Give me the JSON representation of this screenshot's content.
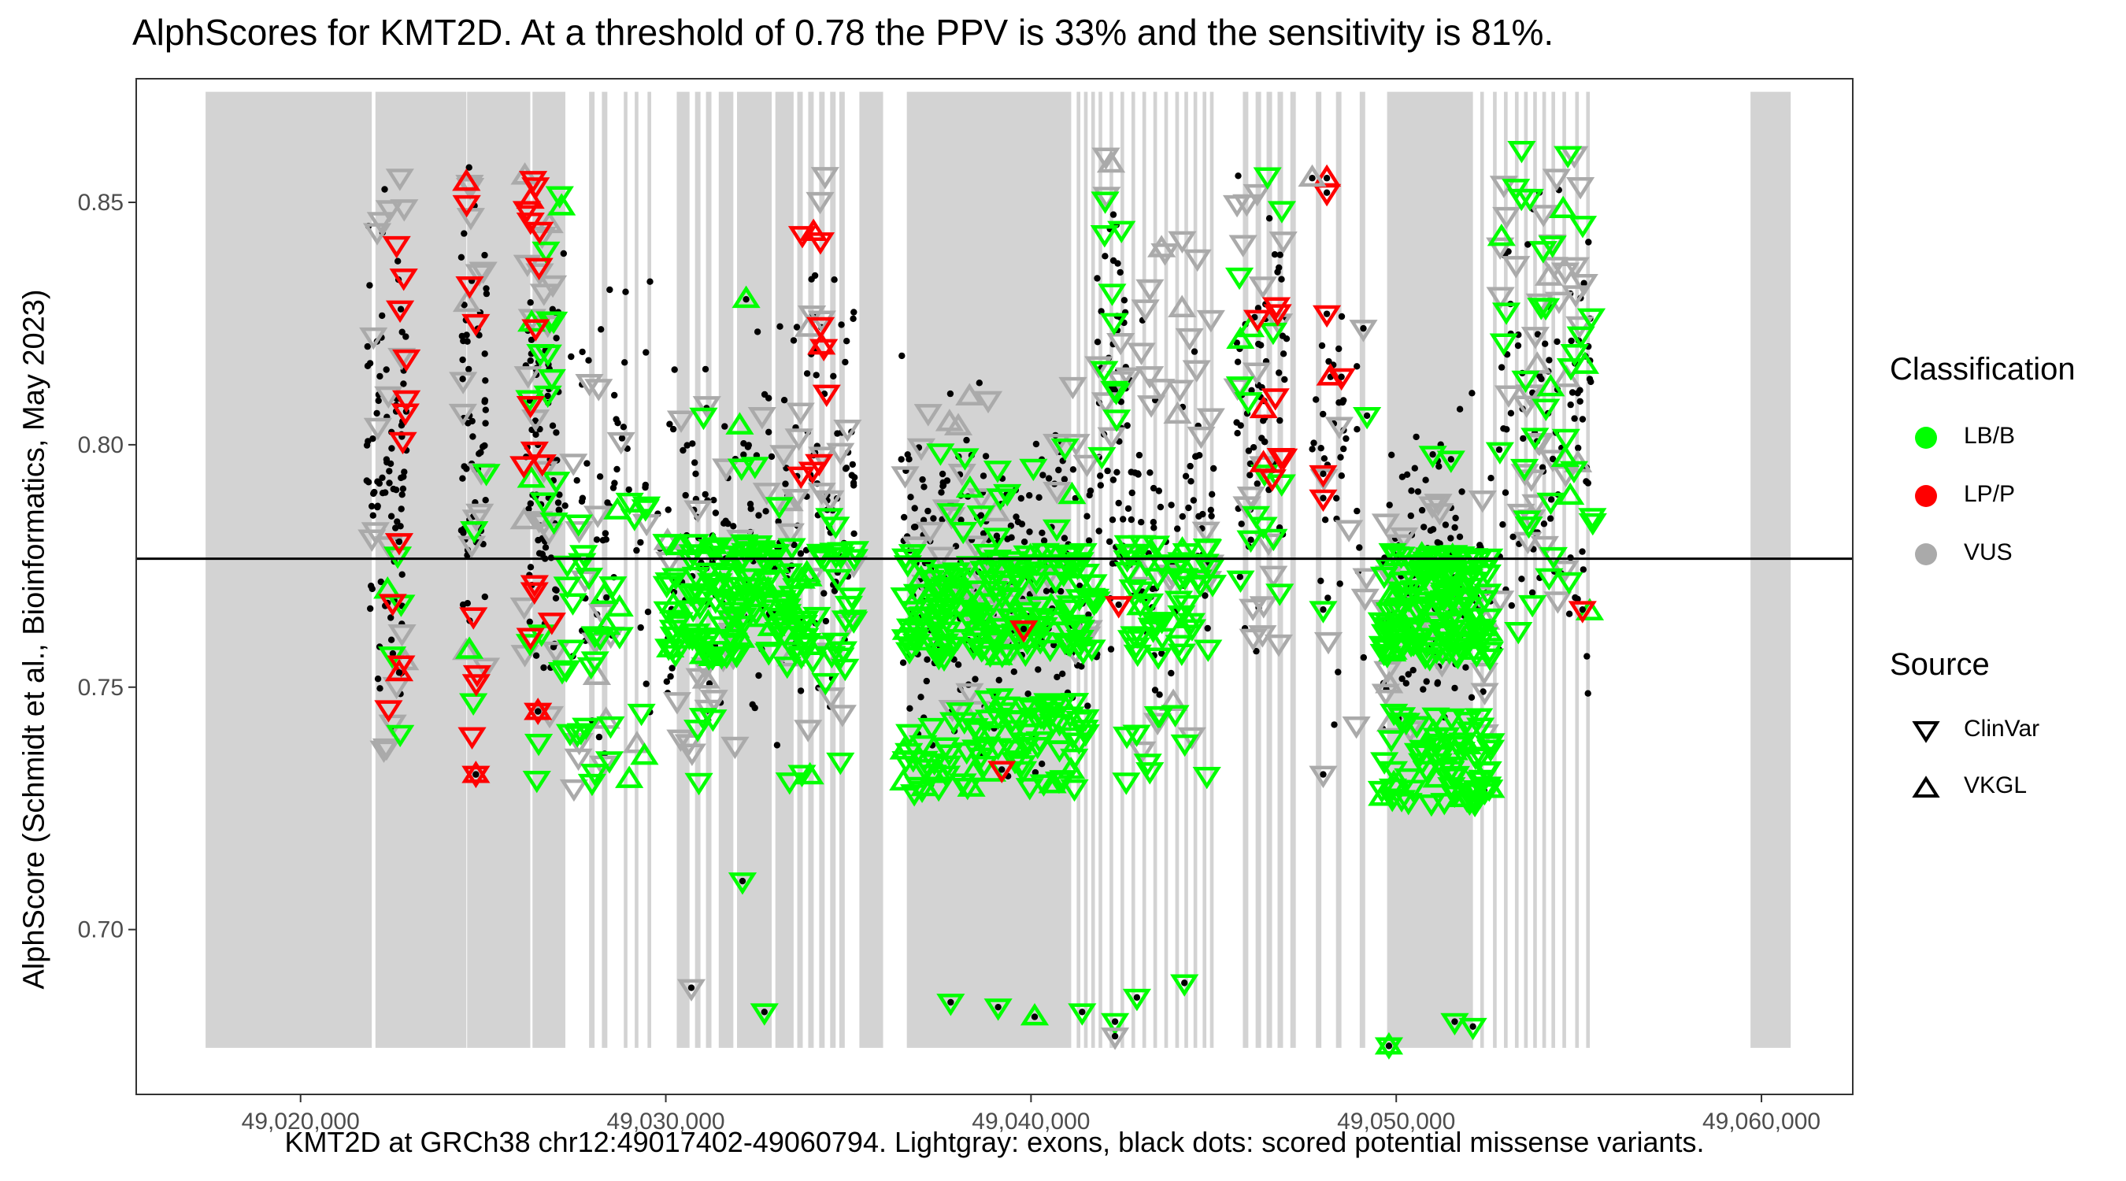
{
  "chart_data": {
    "type": "scatter",
    "title": "AlphScores for KMT2D. At a threshold of 0.78 the PPV is 33% and the sensitivity is 81%.",
    "xlabel": "KMT2D at GRCh38 chr12:49017402-49060794. Lightgray: exons, black dots: scored potential missense variants.",
    "ylabel": "AlphScore (Schmidt et al.,  Bioinformatics, May 2023)",
    "xlim": [
      49015500,
      49062500
    ],
    "ylim": [
      0.666,
      0.8755
    ],
    "x_ticks": [
      49020000,
      49030000,
      49040000,
      49050000,
      49060000
    ],
    "x_tick_labels": [
      "49,020,000",
      "49,030,000",
      "49,040,000",
      "49,050,000",
      "49,060,000"
    ],
    "y_ticks": [
      0.7,
      0.75,
      0.8,
      0.85
    ],
    "y_tick_labels": [
      "0.70",
      "0.75",
      "0.80",
      "0.85"
    ],
    "threshold": 0.7765,
    "grid": false,
    "exons": [
      [
        49017400,
        49021950
      ],
      [
        49022050,
        49024540
      ],
      [
        49024560,
        49026290
      ],
      [
        49026350,
        49027250
      ],
      [
        49027900,
        49028050
      ],
      [
        49028250,
        49028400
      ],
      [
        49028850,
        49028950
      ],
      [
        49029150,
        49029250
      ],
      [
        49029500,
        49029600
      ],
      [
        49030300,
        49030650
      ],
      [
        49030800,
        49030950
      ],
      [
        49031100,
        49031250
      ],
      [
        49031450,
        49031850
      ],
      [
        49031950,
        49032900
      ],
      [
        49033000,
        49033500
      ],
      [
        49033600,
        49033750
      ],
      [
        49033900,
        49034050
      ],
      [
        49034200,
        49034350
      ],
      [
        49034500,
        49034650
      ],
      [
        49034750,
        49034900
      ],
      [
        49035300,
        49035950
      ],
      [
        49036600,
        49041100
      ],
      [
        49041250,
        49041350
      ],
      [
        49041450,
        49041550
      ],
      [
        49041650,
        49041750
      ],
      [
        49041850,
        49041950
      ],
      [
        49042150,
        49042250
      ],
      [
        49042450,
        49042550
      ],
      [
        49042750,
        49042850
      ],
      [
        49043050,
        49043150
      ],
      [
        49043350,
        49043450
      ],
      [
        49043650,
        49043750
      ],
      [
        49043950,
        49044050
      ],
      [
        49044200,
        49044300
      ],
      [
        49044450,
        49044550
      ],
      [
        49044700,
        49044800
      ],
      [
        49044900,
        49045000
      ],
      [
        49045800,
        49045950
      ],
      [
        49046150,
        49046300
      ],
      [
        49046450,
        49046600
      ],
      [
        49046750,
        49046900
      ],
      [
        49047100,
        49047250
      ],
      [
        49047800,
        49047950
      ],
      [
        49048350,
        49048500
      ],
      [
        49049000,
        49049150
      ],
      [
        49049750,
        49052100
      ],
      [
        49052300,
        49052400
      ],
      [
        49052650,
        49052750
      ],
      [
        49052950,
        49053050
      ],
      [
        49053250,
        49053350
      ],
      [
        49053500,
        49053600
      ],
      [
        49053750,
        49053850
      ],
      [
        49054000,
        49054100
      ],
      [
        49054250,
        49054350
      ],
      [
        49054550,
        49054650
      ],
      [
        49054900,
        49055000
      ],
      [
        49055200,
        49055300
      ],
      [
        49059700,
        49060800
      ]
    ],
    "scored_regions": [
      [
        49021800,
        49022900,
        0.728,
        0.868,
        90
      ],
      [
        49024400,
        49025100,
        0.733,
        0.868,
        60
      ],
      [
        49026100,
        49027100,
        0.728,
        0.872,
        70
      ],
      [
        49027150,
        49029600,
        0.723,
        0.848,
        55
      ],
      [
        49029750,
        49031000,
        0.723,
        0.828,
        30
      ],
      [
        49031000,
        49033500,
        0.722,
        0.835,
        85
      ],
      [
        49033500,
        49035200,
        0.725,
        0.858,
        70
      ],
      [
        49036400,
        49039200,
        0.721,
        0.822,
        120
      ],
      [
        49039200,
        49041800,
        0.722,
        0.822,
        90
      ],
      [
        49041800,
        49042600,
        0.735,
        0.87,
        50
      ],
      [
        49042600,
        49045000,
        0.727,
        0.832,
        70
      ],
      [
        49045600,
        49047000,
        0.738,
        0.872,
        60
      ],
      [
        49047700,
        49049200,
        0.733,
        0.852,
        35
      ],
      [
        49049600,
        49052600,
        0.722,
        0.82,
        110
      ],
      [
        49052800,
        49055400,
        0.733,
        0.873,
        90
      ]
    ],
    "variant_regions": [
      [
        49021900,
        49022900,
        0.735,
        0.858,
        18,
        "VUS"
      ],
      [
        49021900,
        49022900,
        0.74,
        0.85,
        10,
        "LP/P"
      ],
      [
        49022300,
        49022900,
        0.74,
        0.79,
        5,
        "LB/B"
      ],
      [
        49024400,
        49025100,
        0.745,
        0.856,
        14,
        "VUS"
      ],
      [
        49024400,
        49025000,
        0.732,
        0.856,
        8,
        "LP/P"
      ],
      [
        49024600,
        49025100,
        0.74,
        0.798,
        4,
        "LB/B"
      ],
      [
        49026100,
        49027100,
        0.735,
        0.862,
        20,
        "VUS"
      ],
      [
        49026100,
        49026900,
        0.74,
        0.855,
        16,
        "LP/P"
      ],
      [
        49026200,
        49027200,
        0.73,
        0.855,
        20,
        "LB/B"
      ],
      [
        49027200,
        49029500,
        0.728,
        0.815,
        18,
        "VUS"
      ],
      [
        49027200,
        49029500,
        0.73,
        0.79,
        34,
        "LB/B"
      ],
      [
        49030000,
        49035200,
        0.735,
        0.81,
        45,
        "VUS"
      ],
      [
        49030000,
        49035200,
        0.756,
        0.78,
        140,
        "LB/B"
      ],
      [
        49030500,
        49035000,
        0.73,
        0.808,
        30,
        "LB/B"
      ],
      [
        49033600,
        49034500,
        0.782,
        0.845,
        10,
        "LP/P"
      ],
      [
        49033800,
        49034400,
        0.82,
        0.858,
        5,
        "VUS"
      ],
      [
        49036500,
        49041800,
        0.745,
        0.815,
        50,
        "VUS"
      ],
      [
        49036500,
        49041800,
        0.756,
        0.778,
        160,
        "LB/B"
      ],
      [
        49036500,
        49041500,
        0.728,
        0.748,
        90,
        "LB/B"
      ],
      [
        49037000,
        49041500,
        0.78,
        0.8,
        14,
        "LB/B"
      ],
      [
        49041800,
        49042600,
        0.79,
        0.855,
        10,
        "LB/B"
      ],
      [
        49041800,
        49042600,
        0.8,
        0.86,
        8,
        "VUS"
      ],
      [
        49042600,
        49045000,
        0.735,
        0.845,
        30,
        "VUS"
      ],
      [
        49042600,
        49045000,
        0.756,
        0.78,
        50,
        "LB/B"
      ],
      [
        49042600,
        49045000,
        0.73,
        0.745,
        10,
        "LB/B"
      ],
      [
        49045600,
        49047000,
        0.745,
        0.855,
        20,
        "VUS"
      ],
      [
        49045600,
        49047000,
        0.75,
        0.858,
        16,
        "LB/B"
      ],
      [
        49046200,
        49047000,
        0.79,
        0.842,
        9,
        "LP/P"
      ],
      [
        49047800,
        49049200,
        0.735,
        0.825,
        7,
        "VUS"
      ],
      [
        49049600,
        49052600,
        0.74,
        0.79,
        30,
        "VUS"
      ],
      [
        49049600,
        49052600,
        0.756,
        0.778,
        140,
        "LB/B"
      ],
      [
        49049600,
        49052600,
        0.725,
        0.745,
        70,
        "LB/B"
      ],
      [
        49052800,
        49055400,
        0.76,
        0.86,
        40,
        "VUS"
      ],
      [
        49052800,
        49055400,
        0.76,
        0.862,
        40,
        "LB/B"
      ]
    ],
    "variants": [
      {
        "x": 49032200,
        "y": 0.83,
        "classification": "LB/B",
        "source": "VKGL"
      },
      {
        "x": 49032100,
        "y": 0.71,
        "classification": "LB/B",
        "source": "ClinVar"
      },
      {
        "x": 49032700,
        "y": 0.683,
        "classification": "LB/B",
        "source": "ClinVar"
      },
      {
        "x": 49030700,
        "y": 0.688,
        "classification": "VUS",
        "source": "ClinVar"
      },
      {
        "x": 49037800,
        "y": 0.685,
        "classification": "LB/B",
        "source": "ClinVar"
      },
      {
        "x": 49039100,
        "y": 0.684,
        "classification": "LB/B",
        "source": "ClinVar"
      },
      {
        "x": 49040100,
        "y": 0.682,
        "classification": "LB/B",
        "source": "VKGL"
      },
      {
        "x": 49041400,
        "y": 0.683,
        "classification": "LB/B",
        "source": "ClinVar"
      },
      {
        "x": 49042300,
        "y": 0.681,
        "classification": "LB/B",
        "source": "ClinVar"
      },
      {
        "x": 49042300,
        "y": 0.678,
        "classification": "VUS",
        "source": "ClinVar"
      },
      {
        "x": 49042900,
        "y": 0.686,
        "classification": "LB/B",
        "source": "ClinVar"
      },
      {
        "x": 49044200,
        "y": 0.689,
        "classification": "LB/B",
        "source": "ClinVar"
      },
      {
        "x": 49049800,
        "y": 0.676,
        "classification": "LB/B",
        "source": "VKGL"
      },
      {
        "x": 49049800,
        "y": 0.676,
        "classification": "LB/B",
        "source": "ClinVar"
      },
      {
        "x": 49051600,
        "y": 0.681,
        "classification": "LB/B",
        "source": "ClinVar"
      },
      {
        "x": 49052100,
        "y": 0.68,
        "classification": "LB/B",
        "source": "ClinVar"
      },
      {
        "x": 49022700,
        "y": 0.78,
        "classification": "LP/P",
        "source": "ClinVar"
      },
      {
        "x": 49022700,
        "y": 0.753,
        "classification": "LP/P",
        "source": "VKGL"
      },
      {
        "x": 49024800,
        "y": 0.732,
        "classification": "LP/P",
        "source": "VKGL"
      },
      {
        "x": 49024800,
        "y": 0.732,
        "classification": "LP/P",
        "source": "ClinVar"
      },
      {
        "x": 49026500,
        "y": 0.745,
        "classification": "LP/P",
        "source": "VKGL"
      },
      {
        "x": 49026500,
        "y": 0.745,
        "classification": "LP/P",
        "source": "ClinVar"
      },
      {
        "x": 49039800,
        "y": 0.762,
        "classification": "LP/P",
        "source": "ClinVar"
      },
      {
        "x": 49039200,
        "y": 0.733,
        "classification": "LP/P",
        "source": "ClinVar"
      },
      {
        "x": 49042400,
        "y": 0.767,
        "classification": "LP/P",
        "source": "ClinVar"
      },
      {
        "x": 49048100,
        "y": 0.855,
        "classification": "LP/P",
        "source": "VKGL"
      },
      {
        "x": 49048100,
        "y": 0.852,
        "classification": "LP/P",
        "source": "ClinVar"
      },
      {
        "x": 49048100,
        "y": 0.827,
        "classification": "LP/P",
        "source": "ClinVar"
      },
      {
        "x": 49048200,
        "y": 0.814,
        "classification": "LP/P",
        "source": "VKGL"
      },
      {
        "x": 49048500,
        "y": 0.814,
        "classification": "LP/P",
        "source": "ClinVar"
      },
      {
        "x": 49048000,
        "y": 0.794,
        "classification": "LP/P",
        "source": "ClinVar"
      },
      {
        "x": 49048000,
        "y": 0.789,
        "classification": "LP/P",
        "source": "ClinVar"
      },
      {
        "x": 49055100,
        "y": 0.766,
        "classification": "LP/P",
        "source": "ClinVar"
      },
      {
        "x": 49048000,
        "y": 0.766,
        "classification": "LB/B",
        "source": "ClinVar"
      },
      {
        "x": 49048000,
        "y": 0.732,
        "classification": "VUS",
        "source": "ClinVar"
      },
      {
        "x": 49049100,
        "y": 0.824,
        "classification": "VUS",
        "source": "ClinVar"
      },
      {
        "x": 49049200,
        "y": 0.806,
        "classification": "LB/B",
        "source": "ClinVar"
      },
      {
        "x": 49047700,
        "y": 0.855,
        "classification": "VUS",
        "source": "VKGL"
      },
      {
        "x": 49051000,
        "y": 0.798,
        "classification": "LB/B",
        "source": "ClinVar"
      },
      {
        "x": 49051500,
        "y": 0.797,
        "classification": "LB/B",
        "source": "ClinVar"
      }
    ],
    "legend": {
      "classification_title": "Classification",
      "classes": [
        {
          "label": "LB/B",
          "color": "#00ff00"
        },
        {
          "label": "LP/P",
          "color": "#ff0000"
        },
        {
          "label": "VUS",
          "color": "#aaaaaa"
        }
      ],
      "source_title": "Source",
      "sources": [
        {
          "label": "ClinVar",
          "shape": "triangle-down"
        },
        {
          "label": "VKGL",
          "shape": "triangle-up"
        }
      ],
      "placement": "right"
    },
    "colors": {
      "exon": "#d3d3d3",
      "dot": "#000000",
      "threshold_line": "#000000",
      "LB/B": "#00ff00",
      "LP/P": "#ff0000",
      "VUS": "#aaaaaa"
    }
  }
}
